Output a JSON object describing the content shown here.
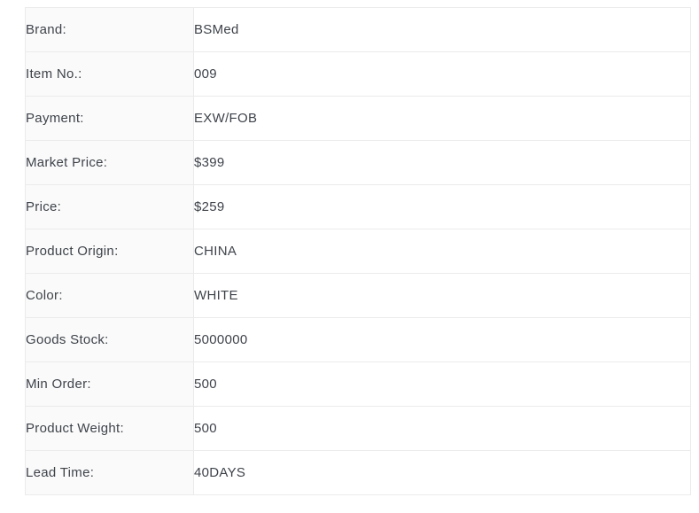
{
  "colors": {
    "page_bg": "#ffffff",
    "label_column_bg": "#fafafa",
    "border": "#ebebeb",
    "text": "#3e434a"
  },
  "spec_table": {
    "rows": [
      {
        "label": "Brand:",
        "value": "BSMed"
      },
      {
        "label": "Item No.:",
        "value": "009"
      },
      {
        "label": "Payment:",
        "value": "EXW/FOB"
      },
      {
        "label": "Market Price:",
        "value": "$399"
      },
      {
        "label": "Price:",
        "value": "$259"
      },
      {
        "label": "Product Origin:",
        "value": "CHINA"
      },
      {
        "label": "Color:",
        "value": "WHITE"
      },
      {
        "label": "Goods Stock:",
        "value": "5000000"
      },
      {
        "label": "Min Order:",
        "value": "500"
      },
      {
        "label": "Product Weight:",
        "value": "500"
      },
      {
        "label": "Lead Time:",
        "value": "40DAYS"
      }
    ]
  }
}
